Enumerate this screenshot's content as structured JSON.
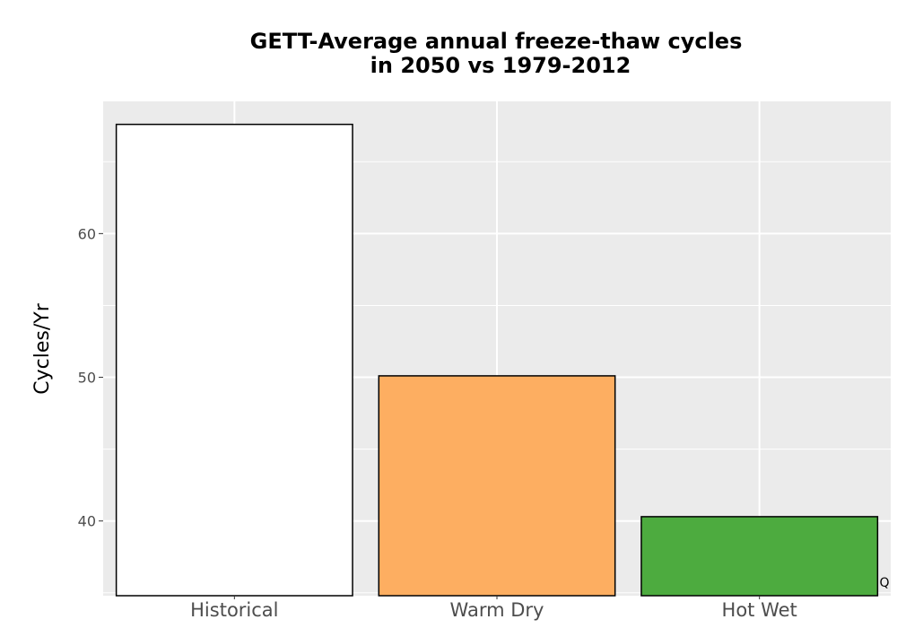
{
  "chart_data": {
    "type": "bar",
    "title_lines": [
      "GETT-Average annual freeze-thaw cycles",
      "in 2050 vs 1979-2012"
    ],
    "xlabel": "",
    "ylabel": "Cycles/Yr",
    "categories": [
      "Historical",
      "Warm Dry",
      "Hot Wet"
    ],
    "values": [
      67.6,
      50.1,
      40.3
    ],
    "colors": [
      "#ffffff",
      "#fdae61",
      "#4dab3f"
    ],
    "ylim": [
      34.8,
      69.2
    ],
    "yticks": [
      40,
      50,
      60
    ],
    "grid": true,
    "panel_color": "#ebebeb",
    "legend": "none"
  },
  "corner_glyph": "Q"
}
